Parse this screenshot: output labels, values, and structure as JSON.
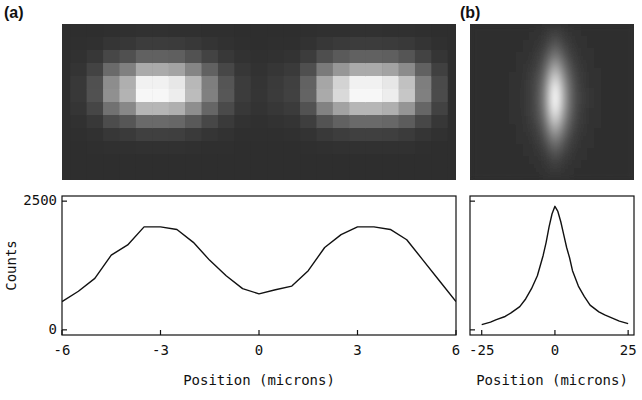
{
  "chart_data": [
    {
      "type": "line",
      "title": "(a)",
      "xlabel": "Position (microns)",
      "ylabel": "Counts",
      "x": [
        -6,
        -5.5,
        -5,
        -4.5,
        -4,
        -3.5,
        -3,
        -2.5,
        -2,
        -1.5,
        -1,
        -0.5,
        0,
        0.5,
        1,
        1.5,
        2,
        2.5,
        3,
        3.5,
        4,
        4.5,
        5,
        5.5,
        6
      ],
      "values": [
        550,
        750,
        1000,
        1450,
        1650,
        2000,
        2000,
        1950,
        1700,
        1350,
        1050,
        800,
        700,
        780,
        850,
        1150,
        1600,
        1850,
        2000,
        2000,
        1950,
        1750,
        1350,
        950,
        550
      ],
      "xlim": [
        -6,
        6
      ],
      "xticks": [
        -6,
        -3,
        0,
        3,
        6
      ],
      "ylim": [
        -100,
        2600
      ],
      "yticks": [
        0,
        2500
      ],
      "color": "#111111"
    },
    {
      "type": "line",
      "title": "(b)",
      "xlabel": "Position (microns)",
      "x": [
        -25,
        -22,
        -20,
        -17,
        -15,
        -12,
        -10,
        -8,
        -6,
        -5,
        -4,
        -3,
        -2,
        -1,
        0,
        1,
        2,
        3,
        4,
        5,
        6,
        8,
        10,
        12,
        15,
        17,
        20,
        22,
        25
      ],
      "values": [
        100,
        150,
        200,
        260,
        330,
        450,
        600,
        800,
        1050,
        1250,
        1450,
        1700,
        2000,
        2250,
        2400,
        2300,
        2100,
        1850,
        1600,
        1400,
        1150,
        850,
        650,
        480,
        350,
        290,
        220,
        170,
        120
      ],
      "xlim": [
        -29,
        27
      ],
      "xticks": [
        -25,
        0,
        25
      ],
      "ylim": [
        -100,
        2600
      ],
      "yticks": [
        0,
        2500
      ],
      "tick_labels": "x",
      "color": "#111111"
    }
  ]
}
